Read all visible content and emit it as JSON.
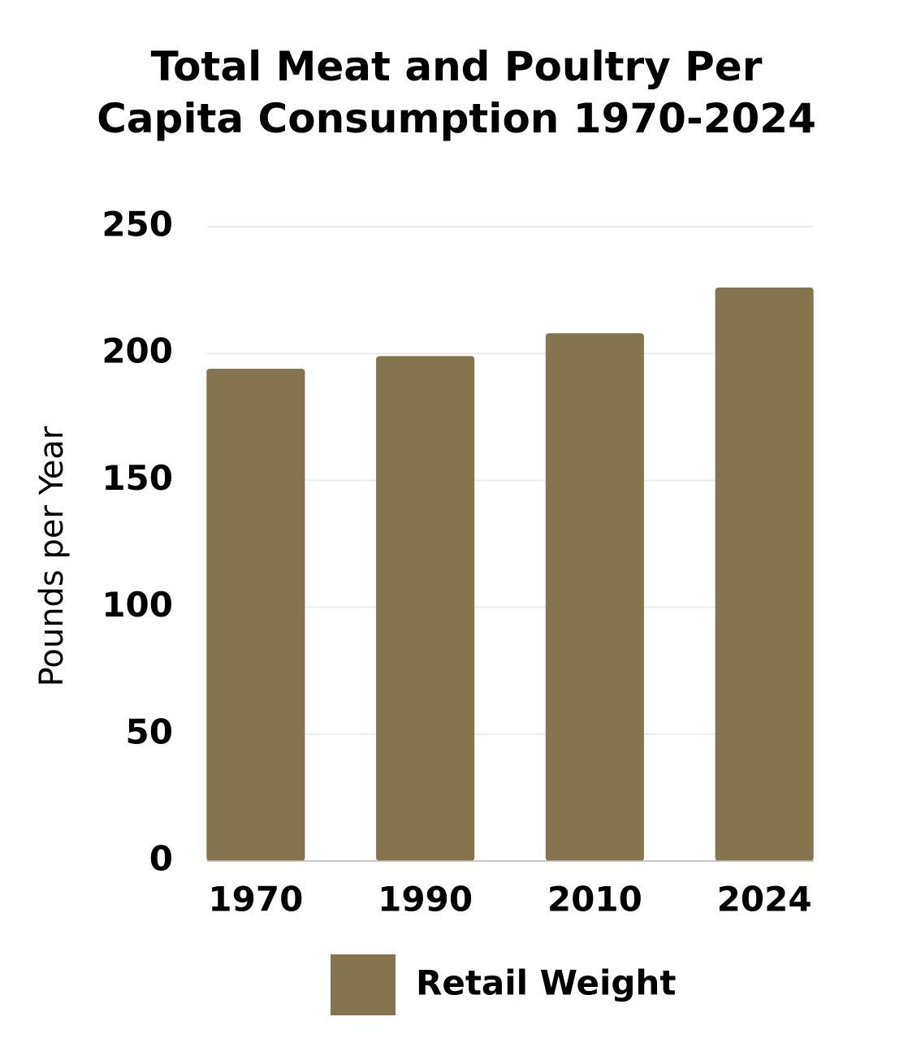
{
  "chart_data": {
    "type": "bar",
    "title": "Total Meat and Poultry Per Capita Consumption 1970-2024",
    "y_label": "Pounds per Year",
    "categories": [
      "1970",
      "1990",
      "2010",
      "2024"
    ],
    "series": [
      {
        "name": "Retail Weight",
        "color": "#85754e",
        "values": [
          194,
          199,
          208,
          226
        ]
      }
    ],
    "ylim": [
      0,
      250
    ],
    "yticks": [
      0,
      50,
      100,
      150,
      200,
      250
    ],
    "grid": true,
    "legend": "bottom"
  }
}
